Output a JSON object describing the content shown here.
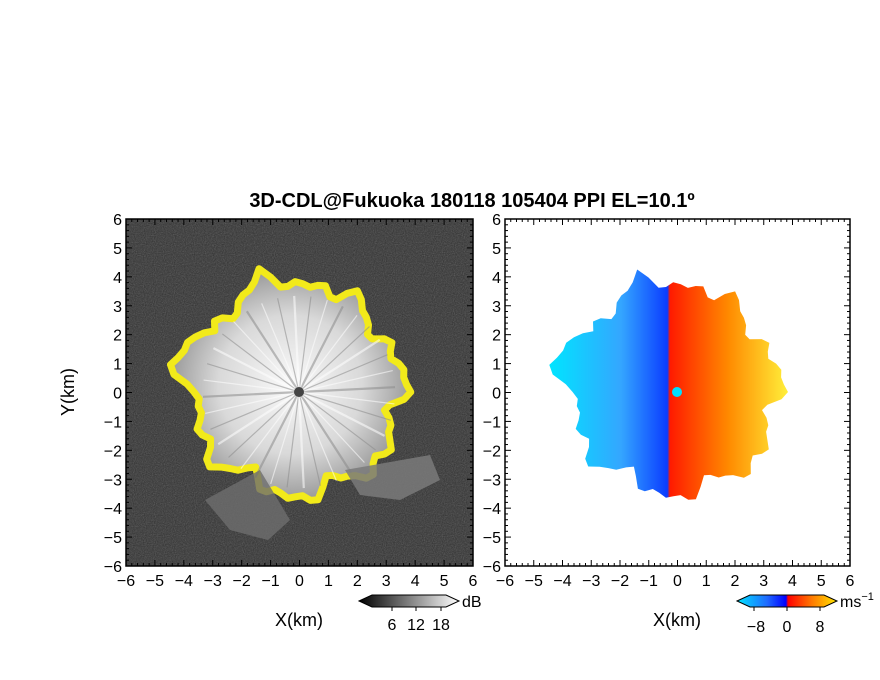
{
  "title": "3D-CDL@Fukuoka 180118 105404 PPI EL=10.1º",
  "chart_data": [
    {
      "type": "heatmap",
      "name": "backscatter",
      "xlabel": "X(km)",
      "ylabel": "Y(km)",
      "xlim": [
        -6,
        6
      ],
      "ylim": [
        -6,
        6
      ],
      "x_ticks": [
        "−6",
        "−5",
        "−4",
        "−3",
        "−2",
        "−1",
        "0",
        "1",
        "2",
        "3",
        "4",
        "5",
        "6"
      ],
      "y_ticks": [
        "6",
        "5",
        "4",
        "3",
        "2",
        "1",
        "0",
        "−1",
        "−2",
        "−3",
        "−4",
        "−5",
        "−6"
      ],
      "colorbar": {
        "unit": "dB",
        "ticks": [
          "6",
          "12",
          "18"
        ],
        "range": [
          0,
          24
        ],
        "colormap": "grayscale"
      },
      "features": {
        "echo_radius_km": 3.5,
        "edge_highlight_color": "#f2ea1a",
        "background_color": "#2e2e2e"
      }
    },
    {
      "type": "heatmap",
      "name": "doppler-velocity",
      "xlabel": "X(km)",
      "ylabel": "",
      "xlim": [
        -6,
        6
      ],
      "ylim": [
        -6,
        6
      ],
      "x_ticks": [
        "−6",
        "−5",
        "−4",
        "−3",
        "−2",
        "−1",
        "0",
        "1",
        "2",
        "3",
        "4",
        "5",
        "6"
      ],
      "y_ticks": [
        "6",
        "5",
        "4",
        "3",
        "2",
        "1",
        "0",
        "−1",
        "−2",
        "−3",
        "−4",
        "−5",
        "−6"
      ],
      "colorbar": {
        "unit": "ms",
        "unit_exponent": "−1",
        "ticks": [
          "−8",
          "0",
          "8"
        ],
        "range": [
          -12,
          12
        ],
        "colors": [
          "#00e5ff",
          "#1f6bff",
          "#0000ff",
          "#ff0000",
          "#ff7a00",
          "#ffe600"
        ]
      },
      "features": {
        "echo_radius_km": 3.5,
        "negative_side": "west",
        "positive_side": "east"
      }
    }
  ]
}
